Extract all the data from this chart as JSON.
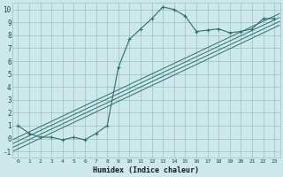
{
  "title": "",
  "xlabel": "Humidex (Indice chaleur)",
  "ylabel": "",
  "bg_color": "#cce8e8",
  "grid_color": "#9bbfbf",
  "line_color": "#2d6e6e",
  "xlim": [
    -0.5,
    23.5
  ],
  "ylim": [
    -1.5,
    10.5
  ],
  "yticks": [
    -1,
    0,
    1,
    2,
    3,
    4,
    5,
    6,
    7,
    8,
    9,
    10
  ],
  "xticks": [
    0,
    1,
    2,
    3,
    4,
    5,
    6,
    7,
    8,
    9,
    10,
    11,
    12,
    13,
    14,
    15,
    16,
    17,
    18,
    19,
    20,
    21,
    22,
    23
  ],
  "main_curve_x": [
    0,
    1,
    2,
    3,
    4,
    5,
    6,
    7,
    8,
    9,
    10,
    11,
    12,
    13,
    14,
    15,
    16,
    17,
    18,
    19,
    20,
    21,
    22,
    23
  ],
  "main_curve_y": [
    1.0,
    0.4,
    0.1,
    0.1,
    -0.1,
    0.1,
    -0.1,
    0.4,
    1.0,
    5.5,
    7.7,
    8.5,
    9.3,
    10.2,
    10.0,
    9.5,
    8.3,
    8.4,
    8.5,
    8.2,
    8.3,
    8.5,
    9.3,
    9.3
  ],
  "linear_lines": [
    {
      "x": [
        -0.5,
        23.5
      ],
      "y": [
        -1.0,
        8.8
      ]
    },
    {
      "x": [
        -0.5,
        23.5
      ],
      "y": [
        -0.7,
        9.1
      ]
    },
    {
      "x": [
        -0.5,
        23.5
      ],
      "y": [
        -0.4,
        9.4
      ]
    },
    {
      "x": [
        -0.5,
        23.5
      ],
      "y": [
        -0.1,
        9.7
      ]
    }
  ]
}
